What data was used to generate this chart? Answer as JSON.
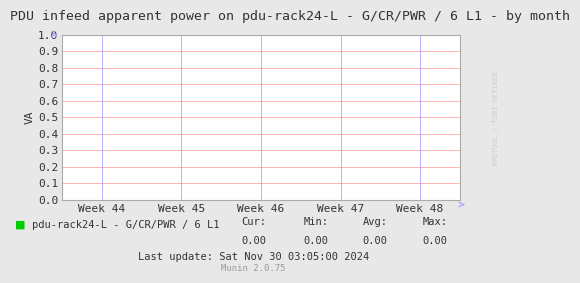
{
  "title": "PDU infeed apparent power on pdu-rack24-L - G/CR/PWR / 6 L1 - by month",
  "ylabel": "VA",
  "bg_color": "#e8e8e8",
  "plot_bg_color": "#ffffff",
  "grid_color_h": "#ffaaaa",
  "grid_color_v": "#aaaaff",
  "border_color": "#aaaaaa",
  "x_ticks_labels": [
    "Week 44",
    "Week 45",
    "Week 46",
    "Week 47",
    "Week 48"
  ],
  "x_ticks_pos": [
    0.1,
    0.3,
    0.5,
    0.7,
    0.9
  ],
  "ylim": [
    0.0,
    1.0
  ],
  "yticks": [
    0.0,
    0.1,
    0.2,
    0.3,
    0.4,
    0.5,
    0.6,
    0.7,
    0.8,
    0.9,
    1.0
  ],
  "title_fontsize": 9.5,
  "axis_fontsize": 8,
  "tick_fontsize": 8,
  "legend_label": "pdu-rack24-L - G/CR/PWR / 6 L1",
  "legend_color": "#00cc00",
  "cur_val": "0.00",
  "min_val": "0.00",
  "avg_val": "0.00",
  "max_val": "0.00",
  "last_update": "Last update: Sat Nov 30 03:05:00 2024",
  "munin_version": "Munin 2.0.75",
  "watermark": "RRDTOOL / TOBI OETIKER",
  "arrow_color": "#aaaaff",
  "title_color": "#333333",
  "text_color": "#333333",
  "munin_color": "#999999"
}
